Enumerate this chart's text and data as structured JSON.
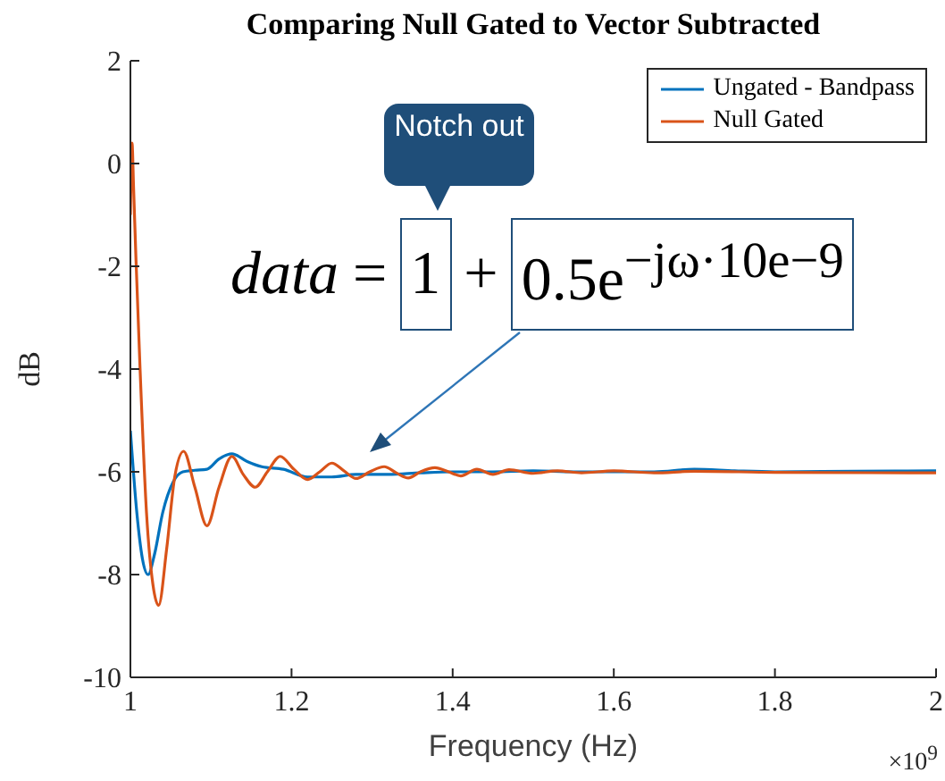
{
  "chart_data": {
    "type": "line",
    "title": "Comparing Null Gated to Vector Subtracted",
    "xlabel": "Frequency (Hz)",
    "ylabel": "dB",
    "xlim": [
      1,
      2
    ],
    "xticks": [
      1,
      1.2,
      1.4,
      1.6,
      1.8,
      2
    ],
    "ylim": [
      -10,
      2
    ],
    "yticks": [
      -10,
      -8,
      -6,
      -4,
      -2,
      0,
      2
    ],
    "grid": false,
    "legend": "top right",
    "marker": "none",
    "line_style": "solid",
    "annotations": [
      "Notch out",
      "data = 1 + 0.5e$^{−jω·10e−9}$",
      "×10$^{9}$"
    ],
    "series": [
      {
        "name": "Ungated - Bandpass",
        "color": "#0072bd",
        "x": [
          1.0,
          1.008,
          1.015,
          1.022,
          1.03,
          1.04,
          1.053,
          1.065,
          1.08,
          1.095,
          1.11,
          1.126,
          1.145,
          1.163,
          1.19,
          1.22,
          1.25,
          1.28,
          1.32,
          1.36,
          1.4,
          1.45,
          1.5,
          1.55,
          1.6,
          1.65,
          1.7,
          1.75,
          1.8,
          1.9,
          2.0
        ],
        "values": [
          -5.2,
          -6.8,
          -7.7,
          -8.0,
          -7.6,
          -6.8,
          -6.2,
          -6.0,
          -5.97,
          -5.95,
          -5.75,
          -5.65,
          -5.8,
          -5.9,
          -5.95,
          -6.1,
          -6.1,
          -6.05,
          -6.05,
          -6.02,
          -6.0,
          -6.0,
          -5.98,
          -6.0,
          -6.0,
          -6.0,
          -5.95,
          -5.98,
          -6.0,
          -5.99,
          -5.98
        ]
      },
      {
        "name": "Null Gated",
        "color": "#d95319",
        "x": [
          1.0,
          1.002,
          1.004,
          1.007,
          1.012,
          1.02,
          1.028,
          1.035,
          1.045,
          1.055,
          1.066,
          1.08,
          1.095,
          1.11,
          1.126,
          1.14,
          1.155,
          1.17,
          1.186,
          1.203,
          1.22,
          1.235,
          1.25,
          1.265,
          1.28,
          1.297,
          1.315,
          1.33,
          1.345,
          1.36,
          1.378,
          1.395,
          1.41,
          1.43,
          1.45,
          1.47,
          1.5,
          1.53,
          1.56,
          1.6,
          1.65,
          1.7,
          1.8,
          2.0
        ],
        "values": [
          -1.0,
          0.4,
          -0.5,
          -1.9,
          -4.0,
          -6.8,
          -8.2,
          -8.6,
          -7.5,
          -6.1,
          -5.6,
          -6.3,
          -7.05,
          -6.3,
          -5.7,
          -6.05,
          -6.3,
          -6.0,
          -5.7,
          -5.95,
          -6.15,
          -6.0,
          -5.83,
          -5.98,
          -6.13,
          -6.0,
          -5.9,
          -6.02,
          -6.12,
          -6.0,
          -5.92,
          -6.0,
          -6.08,
          -5.95,
          -6.05,
          -5.96,
          -6.03,
          -5.98,
          -6.02,
          -5.98,
          -6.02,
          -5.99,
          -6.01,
          -6.02
        ]
      }
    ]
  }
}
